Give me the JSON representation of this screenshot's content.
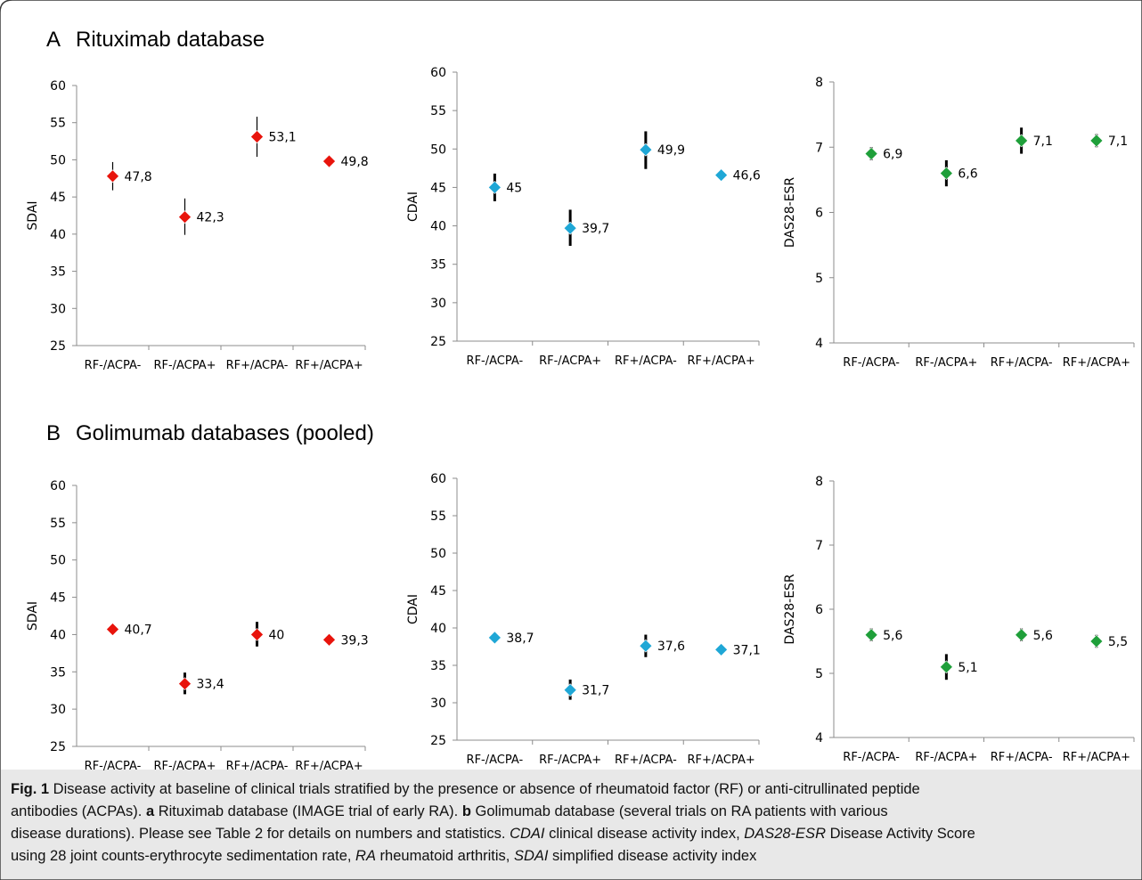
{
  "panels": [
    {
      "letter": "A",
      "title": "Rituximab database"
    },
    {
      "letter": "B",
      "title": "Golimumab databases (pooled)"
    }
  ],
  "colors": {
    "SDAI": "#e8140c",
    "CDAI": "#1fa7d6",
    "DAS28-ESR": "#1f9f3a",
    "error_bar": "#000000"
  },
  "chart_data": [
    {
      "type": "scatter",
      "panel": "A",
      "ylabel": "SDAI",
      "categories": [
        "RF-/ACPA-",
        "RF-/ACPA+",
        "RF+/ACPA-",
        "RF+/ACPA+"
      ],
      "values": [
        47.8,
        42.3,
        53.1,
        49.8
      ],
      "labels": [
        "47,8",
        "42,3",
        "53,1",
        "49,8"
      ],
      "error_low": [
        45.9,
        39.9,
        50.4,
        49.1
      ],
      "error_high": [
        49.7,
        44.8,
        55.8,
        50.5
      ],
      "ylim": [
        25,
        60
      ],
      "yticks": [
        25,
        30,
        35,
        40,
        45,
        50,
        55,
        60
      ],
      "error_bar_style": "thin",
      "marker": "diamond",
      "grid": false
    },
    {
      "type": "scatter",
      "panel": "A",
      "ylabel": "CDAI",
      "categories": [
        "RF-/ACPA-",
        "RF-/ACPA+",
        "RF+/ACPA-",
        "RF+/ACPA+"
      ],
      "values": [
        45,
        39.7,
        49.9,
        46.6
      ],
      "labels": [
        "45",
        "39,7",
        "49,9",
        "46,6"
      ],
      "error_low": [
        43.2,
        37.4,
        47.4,
        46.2
      ],
      "error_high": [
        46.8,
        42.1,
        52.3,
        47.0
      ],
      "ylim": [
        25,
        60
      ],
      "yticks": [
        25,
        30,
        35,
        40,
        45,
        50,
        55,
        60
      ],
      "error_bar_style": "thick",
      "marker": "diamond",
      "grid": false
    },
    {
      "type": "scatter",
      "panel": "A",
      "ylabel": "DAS28-ESR",
      "categories": [
        "RF-/ACPA-",
        "RF-/ACPA+",
        "RF+/ACPA-",
        "RF+/ACPA+"
      ],
      "values": [
        6.9,
        6.6,
        7.1,
        7.1
      ],
      "labels": [
        "6,9",
        "6,6",
        "7,1",
        "7,1"
      ],
      "error_low": [
        6.8,
        6.4,
        6.9,
        7.0
      ],
      "error_high": [
        7.0,
        6.8,
        7.3,
        7.2
      ],
      "ylim": [
        4,
        8
      ],
      "yticks": [
        4,
        5,
        6,
        7,
        8
      ],
      "error_bar_style": "thick",
      "marker": "diamond",
      "grid": false
    },
    {
      "type": "scatter",
      "panel": "B",
      "ylabel": "SDAI",
      "categories": [
        "RF-/ACPA-",
        "RF-/ACPA+",
        "RF+/ACPA-",
        "RF+/ACPA+"
      ],
      "values": [
        40.7,
        33.4,
        40,
        39.3
      ],
      "labels": [
        "40,7",
        "33,4",
        "40",
        "39,3"
      ],
      "error_low": [
        40.0,
        32.0,
        38.4,
        38.9
      ],
      "error_high": [
        41.4,
        34.9,
        41.7,
        39.7
      ],
      "ylim": [
        25,
        60
      ],
      "yticks": [
        25,
        30,
        35,
        40,
        45,
        50,
        55,
        60
      ],
      "error_bar_style": "thick",
      "marker": "diamond",
      "grid": false
    },
    {
      "type": "scatter",
      "panel": "B",
      "ylabel": "CDAI",
      "categories": [
        "RF-/ACPA-",
        "RF-/ACPA+",
        "RF+/ACPA-",
        "RF+/ACPA+"
      ],
      "values": [
        38.7,
        31.7,
        37.6,
        37.1
      ],
      "labels": [
        "38,7",
        "31,7",
        "37,6",
        "37,1"
      ],
      "error_low": [
        38.1,
        30.4,
        36.1,
        36.8
      ],
      "error_high": [
        39.4,
        33.1,
        39.1,
        37.4
      ],
      "ylim": [
        25,
        60
      ],
      "yticks": [
        25,
        30,
        35,
        40,
        45,
        50,
        55,
        60
      ],
      "error_bar_style": "thick",
      "marker": "diamond",
      "grid": false
    },
    {
      "type": "scatter",
      "panel": "B",
      "ylabel": "DAS28-ESR",
      "categories": [
        "RF-/ACPA-",
        "RF-/ACPA+",
        "RF+/ACPA-",
        "RF+/ACPA+"
      ],
      "values": [
        5.6,
        5.1,
        5.6,
        5.5
      ],
      "labels": [
        "5,6",
        "5,1",
        "5,6",
        "5,5"
      ],
      "error_low": [
        5.5,
        4.9,
        5.5,
        5.4
      ],
      "error_high": [
        5.7,
        5.3,
        5.7,
        5.6
      ],
      "ylim": [
        4,
        8
      ],
      "yticks": [
        4,
        5,
        6,
        7,
        8
      ],
      "error_bar_style": "thick",
      "marker": "diamond",
      "grid": false
    }
  ],
  "caption": {
    "line1": [
      {
        "text": "Fig. 1",
        "style": "b"
      },
      {
        "text": " Disease activity at baseline of clinical trials stratified by the presence or absence of rheumatoid factor (RF) or anti-citrullinated peptide",
        "style": "n"
      }
    ],
    "line2": [
      {
        "text": "antibodies (ACPAs). ",
        "style": "n"
      },
      {
        "text": "a",
        "style": "b"
      },
      {
        "text": " Rituximab database (IMAGE trial of early RA). ",
        "style": "n"
      },
      {
        "text": "b",
        "style": "b"
      },
      {
        "text": " Golimumab database (several trials on RA patients with various",
        "style": "n"
      }
    ],
    "line3": [
      {
        "text": "disease durations). Please see Table 2 for details on numbers and statistics. ",
        "style": "n"
      },
      {
        "text": "CDAI",
        "style": "i"
      },
      {
        "text": " clinical disease activity index, ",
        "style": "n"
      },
      {
        "text": "DAS28-ESR",
        "style": "i"
      },
      {
        "text": " Disease Activity Score",
        "style": "n"
      }
    ],
    "line4": [
      {
        "text": "using 28 joint counts-erythrocyte sedimentation rate, ",
        "style": "n"
      },
      {
        "text": "RA",
        "style": "i"
      },
      {
        "text": " rheumatoid arthritis, ",
        "style": "n"
      },
      {
        "text": "SDAI",
        "style": "i"
      },
      {
        "text": " simplified disease activity index",
        "style": "n"
      }
    ]
  }
}
